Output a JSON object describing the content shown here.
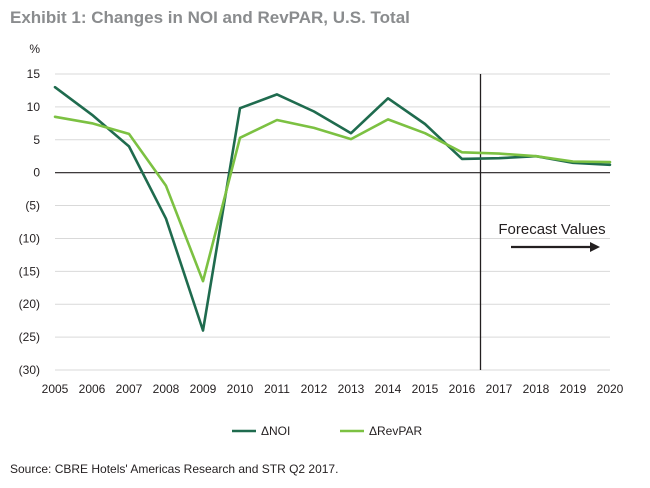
{
  "title": "Exhibit 1: Changes in NOI and RevPAR, U.S. Total",
  "source": "Source: CBRE Hotels' Americas Research and STR Q2 2017.",
  "colors": {
    "noi": "#1f6b4e",
    "revpar": "#7cc142",
    "grid": "#d9d9d9",
    "axis": "#231f20",
    "title": "#8a8c8e"
  },
  "chart_data": {
    "type": "line",
    "title": "Exhibit 1: Changes in NOI and RevPAR, U.S. Total",
    "ylabel": "%",
    "xlabel": "",
    "ylim": [
      -30,
      15
    ],
    "yticks": [
      15,
      10,
      5,
      0,
      -5,
      -10,
      -15,
      -20,
      -25,
      -30
    ],
    "ytick_labels": [
      "15",
      "10",
      "5",
      "0",
      "(5)",
      "(10)",
      "(15)",
      "(20)",
      "(25)",
      "(30)"
    ],
    "categories": [
      "2005",
      "2006",
      "2007",
      "2008",
      "2009",
      "2010",
      "2011",
      "2012",
      "2013",
      "2014",
      "2015",
      "2016",
      "2017",
      "2018",
      "2019",
      "2020"
    ],
    "series": [
      {
        "name": "ΔNOI",
        "key": "noi",
        "values": [
          13.0,
          8.8,
          4.0,
          -7.0,
          -24.0,
          9.8,
          11.9,
          9.3,
          6.0,
          11.3,
          7.4,
          2.1,
          2.2,
          2.5,
          1.5,
          1.2
        ]
      },
      {
        "name": "ΔRevPAR",
        "key": "revpar",
        "values": [
          8.5,
          7.5,
          5.9,
          -2.0,
          -16.5,
          5.3,
          8.0,
          6.8,
          5.1,
          8.1,
          6.0,
          3.1,
          2.9,
          2.5,
          1.7,
          1.6
        ]
      }
    ],
    "forecast_divider_after": "2016",
    "annotation": "Forecast Values",
    "legend_position": "bottom-center",
    "grid": true
  }
}
